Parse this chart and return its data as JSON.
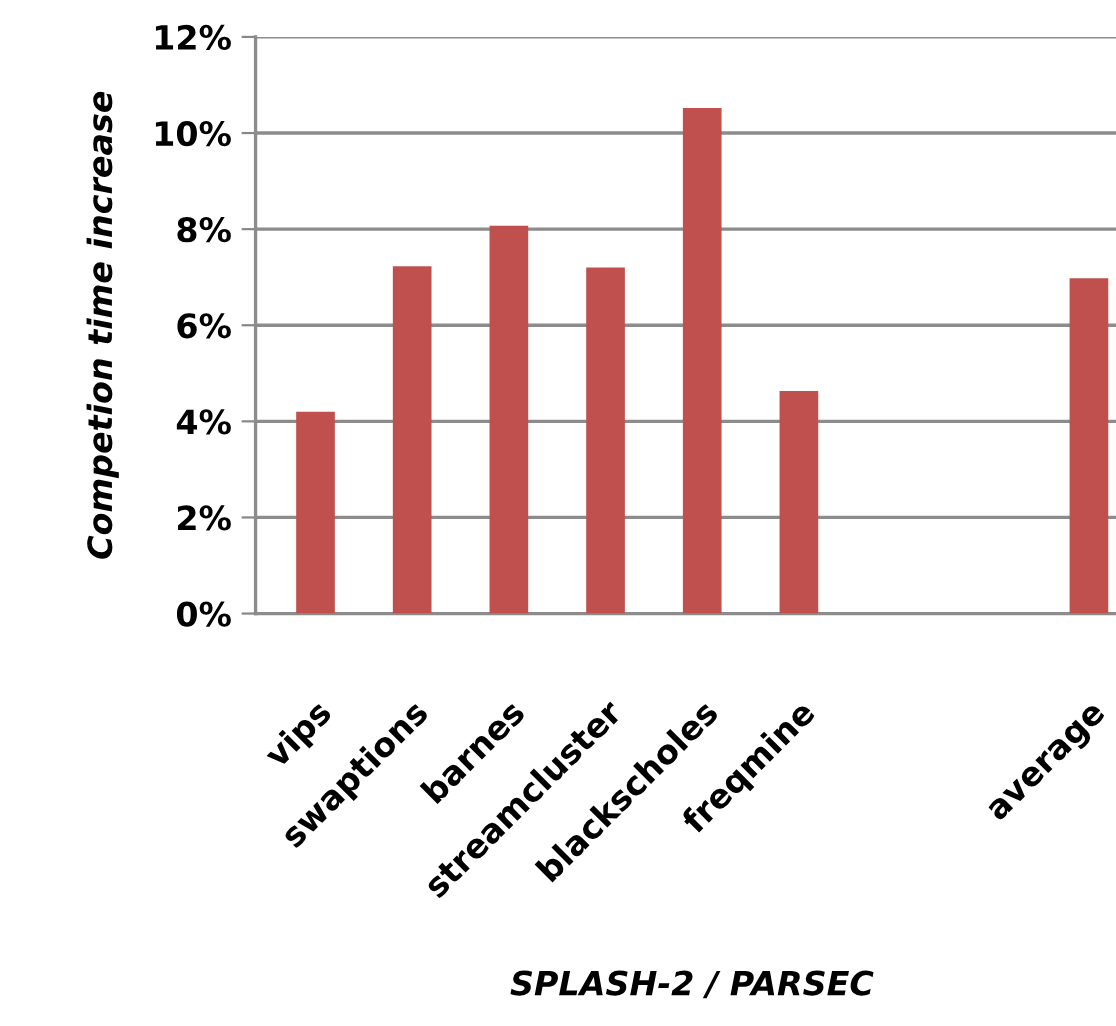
{
  "chart_data": {
    "type": "bar",
    "xlabel": "SPLASH-2 / PARSEC",
    "ylabel": "Competion time increase",
    "categories": [
      "vips",
      "swaptions",
      "barnes",
      "streamcluster",
      "blackscholes",
      "freqmine",
      null,
      null,
      "average"
    ],
    "values": [
      4.2,
      7.23,
      8.07,
      7.2,
      10.52,
      4.63,
      null,
      null,
      6.98
    ],
    "color": "#c0504d",
    "ylim": [
      0,
      12
    ],
    "yticks": [
      {
        "value": 0,
        "label": "0%"
      },
      {
        "value": 2,
        "label": "2%"
      },
      {
        "value": 4,
        "label": "4%"
      },
      {
        "value": 6,
        "label": "6%"
      },
      {
        "value": 8,
        "label": "8%"
      },
      {
        "value": 10,
        "label": "10%"
      },
      {
        "value": 12,
        "label": "12%"
      }
    ],
    "grid": "y",
    "legend": false
  }
}
